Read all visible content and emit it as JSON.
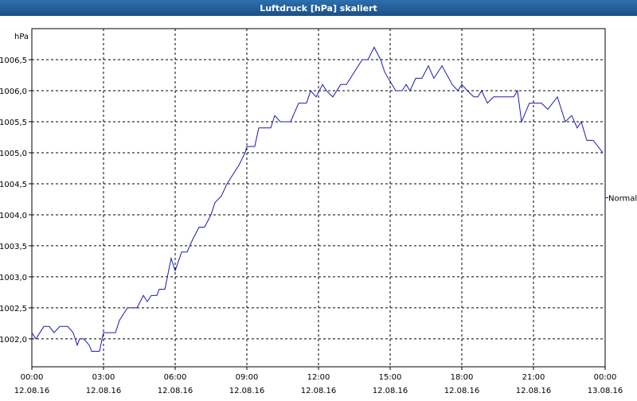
{
  "chart_data": {
    "type": "line",
    "title": "Luftdruck [hPa] skaliert",
    "y_unit": "hPa",
    "xlim": [
      0,
      24
    ],
    "xticks": [
      {
        "value": 0,
        "label": "00:00",
        "date": "12.08.16"
      },
      {
        "value": 3,
        "label": "03:00",
        "date": "12.08.16"
      },
      {
        "value": 6,
        "label": "06:00",
        "date": "12.08.16"
      },
      {
        "value": 9,
        "label": "09:00",
        "date": "12.08.16"
      },
      {
        "value": 12,
        "label": "12:00",
        "date": "12.08.16"
      },
      {
        "value": 15,
        "label": "15:00",
        "date": "12.08.16"
      },
      {
        "value": 18,
        "label": "18:00",
        "date": "12.08.16"
      },
      {
        "value": 21,
        "label": "21:00",
        "date": "12.08.16"
      },
      {
        "value": 24,
        "label": "00:00",
        "date": "13.08.16"
      }
    ],
    "ylim": [
      1001.55,
      1007.0
    ],
    "yticks": [
      {
        "value": 1002.0,
        "label": "1002,0"
      },
      {
        "value": 1002.5,
        "label": "1002,5"
      },
      {
        "value": 1003.0,
        "label": "1003,0"
      },
      {
        "value": 1003.5,
        "label": "1003,5"
      },
      {
        "value": 1004.0,
        "label": "1004,0"
      },
      {
        "value": 1004.5,
        "label": "1004,5"
      },
      {
        "value": 1005.0,
        "label": "1005,0"
      },
      {
        "value": 1005.5,
        "label": "1005,5"
      },
      {
        "value": 1006.0,
        "label": "1006,0"
      },
      {
        "value": 1006.5,
        "label": "1006,5"
      }
    ],
    "grid": true,
    "legend": "right",
    "x": [
      0,
      0.17,
      0.5,
      0.73,
      0.93,
      1.17,
      1.5,
      1.73,
      1.9,
      2.0,
      2.17,
      2.4,
      2.5,
      2.83,
      3.0,
      3.5,
      3.67,
      4.0,
      4.4,
      4.67,
      4.83,
      5.0,
      5.23,
      5.33,
      5.57,
      5.83,
      6.0,
      6.27,
      6.5,
      6.73,
      7.0,
      7.23,
      7.5,
      7.67,
      7.93,
      8.17,
      8.67,
      8.93,
      9.0,
      9.33,
      9.5,
      10.0,
      10.17,
      10.4,
      10.83,
      11.17,
      11.5,
      11.67,
      11.9,
      12.17,
      12.33,
      12.6,
      12.93,
      13.17,
      13.83,
      14.07,
      14.33,
      14.6,
      14.77,
      15.23,
      15.5,
      15.67,
      15.83,
      16.07,
      16.33,
      16.6,
      16.83,
      17.17,
      17.6,
      17.83,
      18.0,
      18.23,
      18.5,
      18.67,
      18.83,
      19.07,
      19.33,
      20.17,
      20.33,
      20.5,
      20.83,
      21.33,
      21.6,
      22.0,
      22.33,
      22.6,
      22.83,
      23.0,
      23.23,
      23.5,
      23.9
    ],
    "series": [
      {
        "name": "Normal",
        "color": "#1a1ab0",
        "values": [
          1002.1,
          1002.0,
          1002.2,
          1002.2,
          1002.1,
          1002.2,
          1002.2,
          1002.1,
          1001.9,
          1002.0,
          1002.0,
          1001.9,
          1001.8,
          1001.8,
          1002.1,
          1002.1,
          1002.3,
          1002.5,
          1002.5,
          1002.7,
          1002.6,
          1002.7,
          1002.7,
          1002.8,
          1002.8,
          1003.3,
          1003.1,
          1003.4,
          1003.4,
          1003.6,
          1003.8,
          1003.8,
          1004.0,
          1004.2,
          1004.3,
          1004.5,
          1004.8,
          1005.0,
          1005.1,
          1005.1,
          1005.4,
          1005.4,
          1005.6,
          1005.5,
          1005.5,
          1005.8,
          1005.8,
          1006.0,
          1005.9,
          1006.1,
          1006.0,
          1005.9,
          1006.1,
          1006.1,
          1006.5,
          1006.5,
          1006.7,
          1006.5,
          1006.3,
          1006.0,
          1006.0,
          1006.1,
          1006.0,
          1006.2,
          1006.2,
          1006.4,
          1006.2,
          1006.4,
          1006.1,
          1006.0,
          1006.1,
          1006.0,
          1005.9,
          1005.9,
          1006.0,
          1005.8,
          1005.9,
          1005.9,
          1006.0,
          1005.5,
          1005.8,
          1005.8,
          1005.7,
          1005.9,
          1005.5,
          1005.6,
          1005.4,
          1005.5,
          1005.2,
          1005.2,
          1005.0
        ]
      }
    ]
  }
}
